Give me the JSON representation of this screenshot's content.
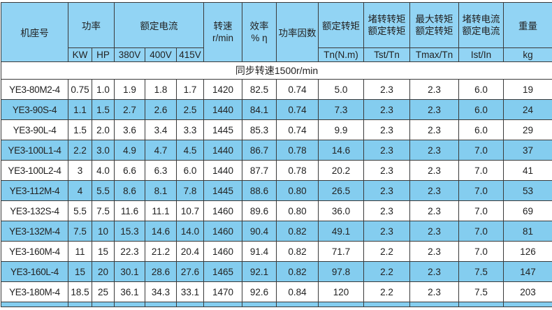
{
  "header": {
    "model": "机座号",
    "power": "功率",
    "current": "额定电流",
    "speed": "转速",
    "speed_unit": "r/min",
    "efficiency": "效率",
    "efficiency_unit": "% η",
    "power_factor": "功率因数",
    "torque": "额定转矩",
    "torque_unit": "Tn(N.m)",
    "locked_torque_1": "堵转转矩",
    "locked_torque_2": "额定转矩",
    "locked_torque_unit": "Tst/Tn",
    "max_torque_1": "最大转矩",
    "max_torque_2": "额定转矩",
    "max_torque_unit": "Tmax/Tn",
    "locked_current_1": "堵转电流",
    "locked_current_2": "额定电流",
    "locked_current_unit": "Ist/In",
    "weight": "重量",
    "weight_unit": "kg",
    "kw": "KW",
    "hp": "HP",
    "v380": "380V",
    "v400": "400V",
    "v415": "415V"
  },
  "section_title": "同步转速1500r/min",
  "colors": {
    "header_bg": "#92d4f4",
    "stripe_bg": "#84cdef"
  },
  "rows": [
    [
      "YE3-80M2-4",
      "0.75",
      "1.0",
      "1.9",
      "1.8",
      "1.7",
      "1420",
      "82.5",
      "0.74",
      "5.0",
      "2.3",
      "2.3",
      "6.0",
      "19"
    ],
    [
      "YE3-90S-4",
      "1.1",
      "1.5",
      "2.7",
      "2.6",
      "2.5",
      "1440",
      "84.1",
      "0.74",
      "7.3",
      "2.3",
      "2.3",
      "6.0",
      "24"
    ],
    [
      "YE3-90L-4",
      "1.5",
      "2.0",
      "3.6",
      "3.4",
      "3.3",
      "1445",
      "85.3",
      "0.74",
      "9.9",
      "2.3",
      "2.3",
      "6.0",
      "29"
    ],
    [
      "YE3-100L1-4",
      "2.2",
      "3.0",
      "4.9",
      "4.7",
      "4.5",
      "1440",
      "86.7",
      "0.78",
      "14.6",
      "2.3",
      "2.3",
      "7.0",
      "37"
    ],
    [
      "YE3-100L2-4",
      "3",
      "4.0",
      "6.6",
      "6.3",
      "6.0",
      "1440",
      "87.7",
      "0.78",
      "20.2",
      "2.3",
      "2.3",
      "7.0",
      "41"
    ],
    [
      "YE3-112M-4",
      "4",
      "5.5",
      "8.6",
      "8.1",
      "7.8",
      "1445",
      "88.6",
      "0.80",
      "26.5",
      "2.3",
      "2.3",
      "7.0",
      "53"
    ],
    [
      "YE3-132S-4",
      "5.5",
      "7.5",
      "11.6",
      "11.1",
      "10.7",
      "1460",
      "89.6",
      "0.80",
      "36.0",
      "2.3",
      "2.3",
      "7.0",
      "69"
    ],
    [
      "YE3-132M-4",
      "7.5",
      "10",
      "15.3",
      "14.6",
      "14.0",
      "1460",
      "90.4",
      "0.82",
      "49.1",
      "2.3",
      "2.3",
      "7.0",
      "81"
    ],
    [
      "YE3-160M-4",
      "11",
      "15",
      "22.3",
      "21.2",
      "20.4",
      "1460",
      "91.4",
      "0.82",
      "71.7",
      "2.2",
      "2.3",
      "7.0",
      "126"
    ],
    [
      "YE3-160L-4",
      "15",
      "20",
      "30.1",
      "28.6",
      "27.6",
      "1465",
      "92.1",
      "0.82",
      "97.8",
      "2.2",
      "2.3",
      "7.5",
      "147"
    ],
    [
      "YE3-180M-4",
      "18.5",
      "25",
      "36.1",
      "34.3",
      "33.1",
      "1470",
      "92.6",
      "0.84",
      "120",
      "2.2",
      "2.3",
      "7.5",
      "203"
    ]
  ]
}
